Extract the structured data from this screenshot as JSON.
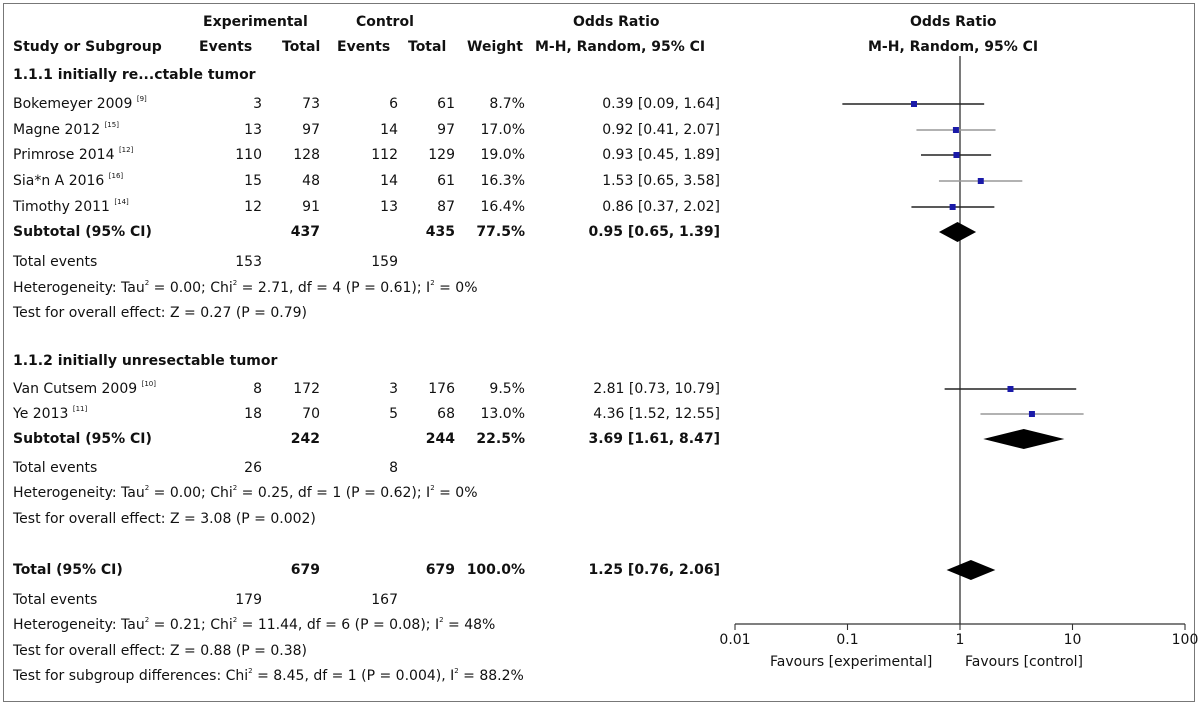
{
  "header": {
    "experimental": "Experimental",
    "control": "Control",
    "odds_ratio": "Odds Ratio",
    "study_col": "Study or Subgroup",
    "events": "Events",
    "total": "Total",
    "weight": "Weight",
    "method": "M-H, Random, 95% CI",
    "plot_title": "Odds Ratio",
    "plot_method": "M-H, Random, 95% CI"
  },
  "groups": [
    {
      "title": "1.1.1 initially re...ctable tumor",
      "studies": [
        {
          "name": "Bokemeyer 2009",
          "ref": "[9]",
          "exp_events": "3",
          "exp_total": "73",
          "ctl_events": "6",
          "ctl_total": "61",
          "weight": "8.7%",
          "ci_text": "0.39 [0.09, 1.64]"
        },
        {
          "name": "Magne 2012",
          "ref": "[15]",
          "exp_events": "13",
          "exp_total": "97",
          "ctl_events": "14",
          "ctl_total": "97",
          "weight": "17.0%",
          "ci_text": "0.92 [0.41, 2.07]"
        },
        {
          "name": "Primrose 2014",
          "ref": "[12]",
          "exp_events": "110",
          "exp_total": "128",
          "ctl_events": "112",
          "ctl_total": "129",
          "weight": "19.0%",
          "ci_text": "0.93 [0.45, 1.89]"
        },
        {
          "name": "Sia*n A 2016",
          "ref": "[16]",
          "exp_events": "15",
          "exp_total": "48",
          "ctl_events": "14",
          "ctl_total": "61",
          "weight": "16.3%",
          "ci_text": "1.53 [0.65, 3.58]"
        },
        {
          "name": "Timothy 2011",
          "ref": "[14]",
          "exp_events": "12",
          "exp_total": "91",
          "ctl_events": "13",
          "ctl_total": "87",
          "weight": "16.4%",
          "ci_text": "0.86 [0.37, 2.02]"
        }
      ],
      "subtotal": {
        "label": "Subtotal (95% CI)",
        "exp_total": "437",
        "ctl_total": "435",
        "weight": "77.5%",
        "ci_text": "0.95 [0.65, 1.39]"
      },
      "total_events": {
        "label": "Total events",
        "exp": "153",
        "ctl": "159"
      },
      "heterogeneity": {
        "prefix": "Heterogeneity: Tau",
        "mid": " = 0.00; Chi",
        "after_chi": " = 2.71, df = 4 (P = 0.61); I",
        "end": " = 0%"
      },
      "overall": "Test for overall effect: Z = 0.27 (P = 0.79)"
    },
    {
      "title": "1.1.2 initially unresectable tumor",
      "studies": [
        {
          "name": "Van Cutsem 2009",
          "ref": "[10]",
          "exp_events": "8",
          "exp_total": "172",
          "ctl_events": "3",
          "ctl_total": "176",
          "weight": "9.5%",
          "ci_text": "2.81 [0.73, 10.79]"
        },
        {
          "name": "Ye 2013",
          "ref": "[11]",
          "exp_events": "18",
          "exp_total": "70",
          "ctl_events": "5",
          "ctl_total": "68",
          "weight": "13.0%",
          "ci_text": "4.36 [1.52, 12.55]"
        }
      ],
      "subtotal": {
        "label": "Subtotal (95% CI)",
        "exp_total": "242",
        "ctl_total": "244",
        "weight": "22.5%",
        "ci_text": "3.69 [1.61, 8.47]"
      },
      "total_events": {
        "label": "Total events",
        "exp": "26",
        "ctl": "8"
      },
      "heterogeneity": {
        "prefix": "Heterogeneity: Tau",
        "mid": " = 0.00; Chi",
        "after_chi": " = 0.25, df = 1 (P = 0.62); I",
        "end": " = 0%"
      },
      "overall": "Test for overall effect: Z = 3.08 (P = 0.002)"
    }
  ],
  "total": {
    "label": "Total (95% CI)",
    "exp_total": "679",
    "ctl_total": "679",
    "weight": "100.0%",
    "ci_text": "1.25 [0.76, 2.06]",
    "total_events": {
      "label": "Total events",
      "exp": "179",
      "ctl": "167"
    },
    "heterogeneity": {
      "prefix": "Heterogeneity: Tau",
      "mid": " = 0.21; Chi",
      "after_chi": " = 11.44, df = 6 (P = 0.08); I",
      "end": " = 48%"
    },
    "overall": "Test for overall effect: Z = 0.88 (P = 0.38)",
    "subgroup": {
      "prefix": "Test for subgroup differences: Chi",
      "after_chi": " = 8.45, df = 1 (P = 0.004), I",
      "end": " = 88.2%"
    }
  },
  "superscript": "2",
  "axis": {
    "ticks": [
      "0.01",
      "0.1",
      "1",
      "10",
      "100"
    ],
    "favours_left": "Favours [experimental]",
    "favours_right": "Favours [control]"
  },
  "colors": {
    "point": "#1a1aa8",
    "ci_line": "#222222",
    "ci_line_light": "#999999",
    "diamond": "#000000"
  },
  "chart_data": {
    "type": "forest",
    "scale": "log",
    "xlim": [
      0.01,
      100
    ],
    "reference_line": 1,
    "studies": [
      {
        "name": "Bokemeyer 2009",
        "or": 0.39,
        "ci": [
          0.09,
          1.64
        ],
        "weight": 8.7
      },
      {
        "name": "Magne 2012",
        "or": 0.92,
        "ci": [
          0.41,
          2.07
        ],
        "weight": 17.0
      },
      {
        "name": "Primrose 2014",
        "or": 0.93,
        "ci": [
          0.45,
          1.89
        ],
        "weight": 19.0
      },
      {
        "name": "Sia*n A 2016",
        "or": 1.53,
        "ci": [
          0.65,
          3.58
        ],
        "weight": 16.3
      },
      {
        "name": "Timothy 2011",
        "or": 0.86,
        "ci": [
          0.37,
          2.02
        ],
        "weight": 16.4
      },
      {
        "name": "Van Cutsem 2009",
        "or": 2.81,
        "ci": [
          0.73,
          10.79
        ],
        "weight": 9.5
      },
      {
        "name": "Ye 2013",
        "or": 4.36,
        "ci": [
          1.52,
          12.55
        ],
        "weight": 13.0
      }
    ],
    "summaries": [
      {
        "name": "Subtotal 1.1.1",
        "or": 0.95,
        "ci": [
          0.65,
          1.39
        ]
      },
      {
        "name": "Subtotal 1.1.2",
        "or": 3.69,
        "ci": [
          1.61,
          8.47
        ]
      },
      {
        "name": "Total",
        "or": 1.25,
        "ci": [
          0.76,
          2.06
        ]
      }
    ]
  }
}
